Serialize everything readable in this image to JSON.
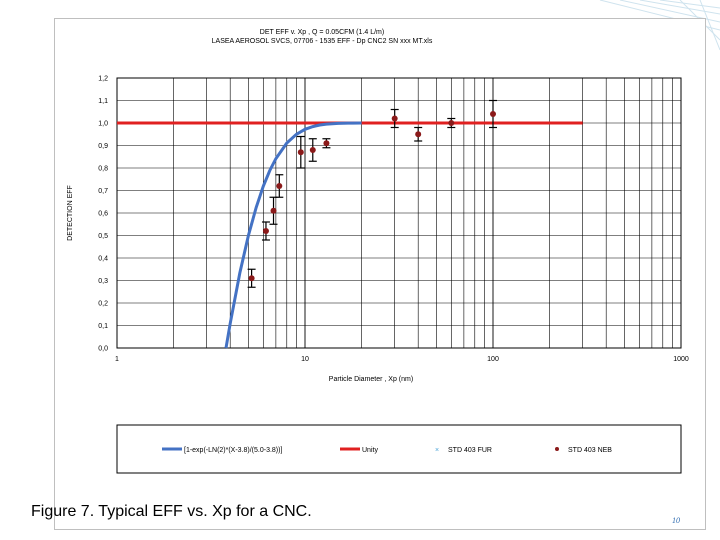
{
  "caption": "Figure 7.  Typical EFF vs. Xp for a CNC.",
  "slide_number": "10",
  "chart_data": {
    "type": "scatter",
    "title_line1": "DET  EFF  v.  Xp ,    Q = 0.05CFM  (1.4 L/m)",
    "title_line2": "LASEA   AEROSOL  SVCS,     07706 - 1535 EFF - Dp  CNC2  SN  xxx MT.xls",
    "xlabel": "Particle Diameter , Xp  (nm)",
    "ylabel": "DETECTION  EFF",
    "xscale": "log",
    "xlim": [
      1,
      1000
    ],
    "ylim": [
      0,
      1.2
    ],
    "x_ticks": [
      "1",
      "10",
      "100",
      "1000"
    ],
    "y_ticks": [
      "0,0",
      "0,1",
      "0,2",
      "0,3",
      "0,4",
      "0,5",
      "0,6",
      "0,7",
      "0,8",
      "0,9",
      "1,0",
      "1,1",
      "1,2"
    ],
    "grid": true,
    "legend_position": "bottom",
    "colors": {
      "fit": "#4472c4",
      "unity": "#e02020",
      "std_fur": "#4aa3d8",
      "std_neb": "#8b1a1a"
    },
    "series": [
      {
        "name": "[1-exp(-LN(2)*(X-3.8)/(5.0-3.8))]",
        "kind": "line",
        "x": [
          3.8,
          4.0,
          4.5,
          5.0,
          5.5,
          6.0,
          6.5,
          7.0,
          8.0,
          9.0,
          10.0,
          11.0,
          12.0,
          13.0,
          14.0,
          15.0,
          16.0,
          17.0,
          18.0,
          20.0
        ],
        "y": [
          0.0,
          0.109,
          0.333,
          0.5,
          0.625,
          0.719,
          0.789,
          0.842,
          0.911,
          0.95,
          0.972,
          0.984,
          0.991,
          0.995,
          0.997,
          0.998,
          0.999,
          0.9995,
          0.9997,
          1.0
        ]
      },
      {
        "name": "Unity",
        "kind": "line",
        "x": [
          1,
          300
        ],
        "y": [
          1.0,
          1.0
        ]
      },
      {
        "name": "STD 403   FUR",
        "kind": "scatter",
        "marker": "x",
        "x": [],
        "y": []
      },
      {
        "name": "STD 403   NEB",
        "kind": "scatter",
        "marker": "circle",
        "x": [
          5.2,
          6.2,
          6.8,
          7.3,
          9.5,
          11.0,
          13.0,
          30.0,
          40.0,
          60.0,
          100.0
        ],
        "y": [
          0.31,
          0.52,
          0.61,
          0.72,
          0.87,
          0.88,
          0.91,
          1.02,
          0.95,
          1.0,
          1.04
        ],
        "err": [
          0.04,
          0.04,
          0.06,
          0.05,
          0.07,
          0.05,
          0.02,
          0.04,
          0.03,
          0.02,
          0.06
        ]
      }
    ]
  }
}
